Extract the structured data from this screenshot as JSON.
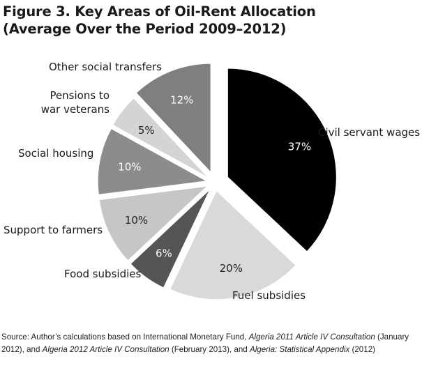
{
  "chart_data": {
    "type": "pie",
    "title": "Figure 3. Key Areas of Oil-Rent Allocation",
    "subtitle": "(Average Over the Period 2009–2012)",
    "slices": [
      {
        "label": "Civil servant wages",
        "value": 37,
        "value_label": "37%",
        "color": "#000000",
        "label_color": "#ffffff"
      },
      {
        "label": "Fuel subsidies",
        "value": 20,
        "value_label": "20%",
        "color": "#d9d9d9",
        "label_color": "#222222"
      },
      {
        "label": "Food subsidies",
        "value": 6,
        "value_label": "6%",
        "color": "#555555",
        "label_color": "#ffffff"
      },
      {
        "label": "Support to farmers",
        "value": 10,
        "value_label": "10%",
        "color": "#c6c6c6",
        "label_color": "#222222"
      },
      {
        "label": "Social housing",
        "value": 10,
        "value_label": "10%",
        "color": "#8c8c8c",
        "label_color": "#ffffff"
      },
      {
        "label": "Pensions to war veterans",
        "label_lines": [
          "Pensions to",
          "war veterans"
        ],
        "value": 5,
        "value_label": "5%",
        "color": "#d4d4d4",
        "label_color": "#222222"
      },
      {
        "label": "Other social transfers",
        "value": 12,
        "value_label": "12%",
        "color": "#7f7f7f",
        "label_color": "#ffffff"
      }
    ]
  },
  "source": {
    "prefix": "Source: Author’s calculations based on International Monetary Fund, ",
    "doc1": "Algeria 2011 Article IV Consultation",
    "mid1": " (January 2012), and ",
    "doc2": "Algeria 2012 Article IV Consultation",
    "mid2": " (February 2013), and ",
    "doc3": "Algeria: Statistical Appendix",
    "suffix": " (2012)"
  }
}
